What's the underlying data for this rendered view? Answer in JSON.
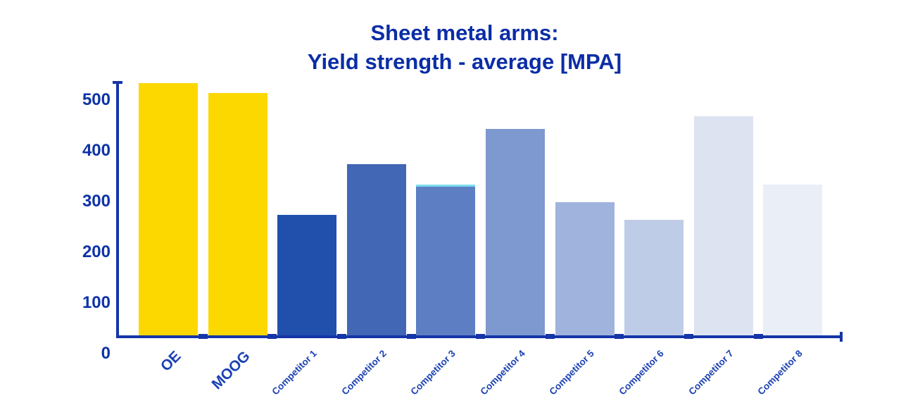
{
  "title": {
    "line1": "Sheet metal arms:",
    "line2": "Yield strength - average [MPA]"
  },
  "colors": {
    "title_text": "#0B2DA6",
    "axis": "#1535A8",
    "ytick_text": "#0E33A8",
    "xlabel_text": "#1B41B2",
    "background": "#FFFFFF"
  },
  "chart_data": {
    "type": "bar",
    "title": "Sheet metal arms: Yield strength - average [MPA]",
    "xlabel": "",
    "ylabel": "",
    "categories": [
      "OE",
      "MOOG",
      "Competitor 1",
      "Competitor 2",
      "Competitor 3",
      "Competitor 4",
      "Competitor 5",
      "Competitor 6",
      "Competitor 7",
      "Competitor 8"
    ],
    "values": [
      500,
      480,
      240,
      340,
      300,
      410,
      265,
      230,
      435,
      300
    ],
    "bar_colors": [
      "#FDD800",
      "#FDD800",
      "#2150AC",
      "#4167B5",
      "#5D7EC2",
      "#7E98D0",
      "#9FB3DC",
      "#BFCCE7",
      "#DDE3F1",
      "#EAEEF7"
    ],
    "bar_top_accent": {
      "index": 4,
      "color": "#7BDDEE"
    },
    "ylim": [
      0,
      500
    ],
    "yticks": [
      0,
      100,
      200,
      300,
      400,
      500
    ],
    "grid": false,
    "legend": false,
    "category_label_sizes": [
      21,
      21,
      13.5,
      13.5,
      13.5,
      13.5,
      13.5,
      13.5,
      13.5,
      13.5
    ]
  }
}
